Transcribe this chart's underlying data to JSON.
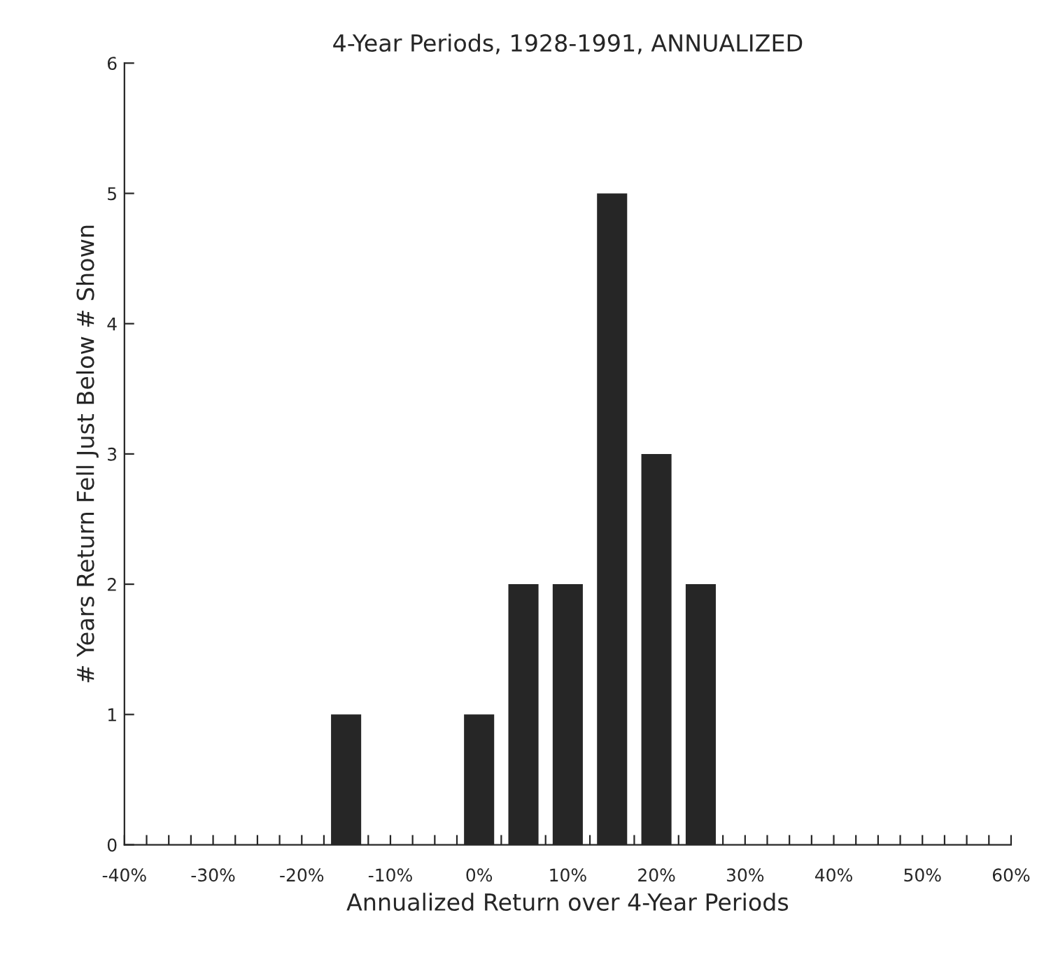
{
  "chart_data": {
    "type": "bar",
    "title": "4-Year Periods, 1928-1991, ANNUALIZED",
    "xlabel": "Annualized Return over 4-Year Periods",
    "ylabel": "# Years Return Fell Just Below # Shown",
    "x": [
      -15,
      0,
      5,
      10,
      15,
      20,
      25
    ],
    "series": [
      {
        "color": "#262626",
        "values": [
          1,
          1,
          2,
          2,
          5,
          3,
          2
        ]
      }
    ],
    "xlim": [
      -40,
      60
    ],
    "xticks": [
      {
        "value": -40,
        "label": "-40%"
      },
      {
        "value": -37.5,
        "label": null
      },
      {
        "value": -35,
        "label": null
      },
      {
        "value": -32.5,
        "label": null
      },
      {
        "value": -30,
        "label": "-30%"
      },
      {
        "value": -27.5,
        "label": null
      },
      {
        "value": -25,
        "label": null
      },
      {
        "value": -22.5,
        "label": null
      },
      {
        "value": -20,
        "label": "-20%"
      },
      {
        "value": -17.5,
        "label": null
      },
      {
        "value": -15,
        "label": null
      },
      {
        "value": -12.5,
        "label": null
      },
      {
        "value": -10,
        "label": "-10%"
      },
      {
        "value": -7.5,
        "label": null
      },
      {
        "value": -5,
        "label": null
      },
      {
        "value": -2.5,
        "label": null
      },
      {
        "value": 0,
        "label": "0%"
      },
      {
        "value": 2.5,
        "label": null
      },
      {
        "value": 5,
        "label": null
      },
      {
        "value": 7.5,
        "label": null
      },
      {
        "value": 10,
        "label": "10%"
      },
      {
        "value": 12.5,
        "label": null
      },
      {
        "value": 15,
        "label": null
      },
      {
        "value": 17.5,
        "label": null
      },
      {
        "value": 20,
        "label": "20%"
      },
      {
        "value": 22.5,
        "label": null
      },
      {
        "value": 25,
        "label": null
      },
      {
        "value": 27.5,
        "label": null
      },
      {
        "value": 30,
        "label": "30%"
      },
      {
        "value": 32.5,
        "label": null
      },
      {
        "value": 35,
        "label": null
      },
      {
        "value": 37.5,
        "label": null
      },
      {
        "value": 40,
        "label": "40%"
      },
      {
        "value": 42.5,
        "label": null
      },
      {
        "value": 45,
        "label": null
      },
      {
        "value": 47.5,
        "label": null
      },
      {
        "value": 50,
        "label": "50%"
      },
      {
        "value": 52.5,
        "label": null
      },
      {
        "value": 55,
        "label": null
      },
      {
        "value": 57.5,
        "label": null
      },
      {
        "value": 60,
        "label": "60%"
      }
    ],
    "ylim": [
      0,
      6
    ],
    "yticks": [
      0,
      1,
      2,
      3,
      4,
      5,
      6
    ],
    "grid": false,
    "legend": false
  }
}
